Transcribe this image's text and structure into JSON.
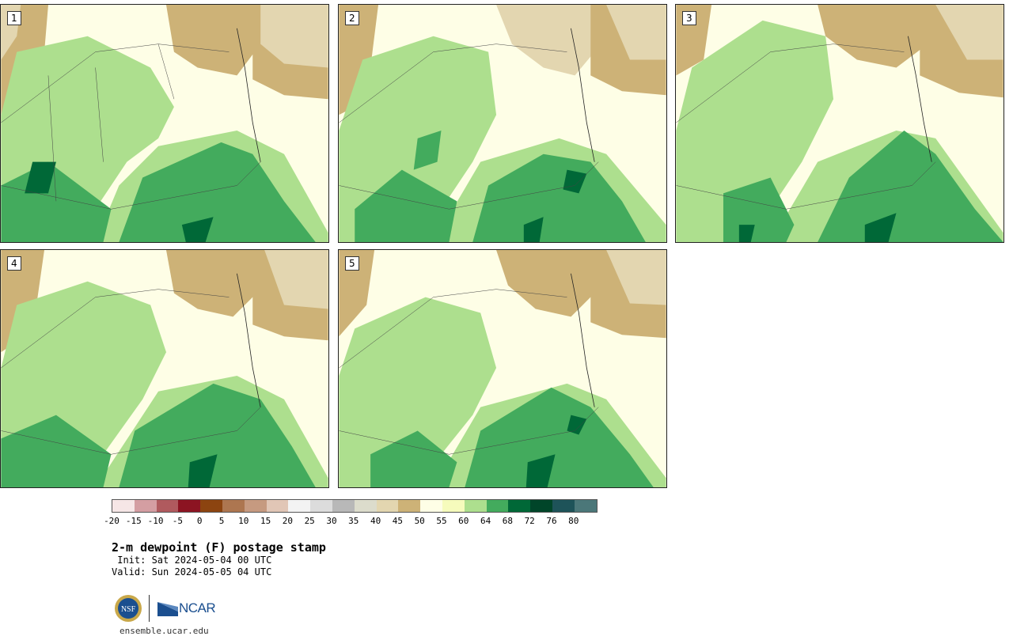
{
  "panels": [
    {
      "label": "1"
    },
    {
      "label": "2"
    },
    {
      "label": "3"
    },
    {
      "label": "4"
    },
    {
      "label": "5"
    }
  ],
  "colorbar": {
    "colors": [
      "#f6e6e6",
      "#d49ea2",
      "#b05a5e",
      "#8c1422",
      "#8c4410",
      "#ad7650",
      "#c69a80",
      "#e1c6b6",
      "#f3f3f3",
      "#dcdcdc",
      "#b8b8b8",
      "#dcdccc",
      "#e3d6b0",
      "#cdb277",
      "#fefee6",
      "#f6fbbc",
      "#addf8e",
      "#43ab5d",
      "#006837",
      "#004529",
      "#1e5359",
      "#4b7779"
    ],
    "ticks": [
      "-20",
      "-15",
      "-10",
      "-5",
      "0",
      "5",
      "10",
      "15",
      "20",
      "25",
      "30",
      "35",
      "40",
      "45",
      "50",
      "55",
      "60",
      "64",
      "68",
      "72",
      "76",
      "80"
    ]
  },
  "title": "2-m dewpoint (F) postage stamp",
  "init": " Init: Sat 2024-05-04 00 UTC",
  "valid": "Valid: Sun 2024-05-05 04 UTC",
  "logos": {
    "nsf": "NSF",
    "ncar": "NCAR"
  },
  "site": "ensemble.ucar.edu",
  "colors": {
    "ocean_land_cream": "#fefee6",
    "tan_45": "#cdb277",
    "light_tan_40": "#e3d6b0",
    "pale_55": "#f6fbbc",
    "light_green_60": "#addf8e",
    "green_64": "#43ab5d",
    "dark_green_68": "#006837"
  }
}
